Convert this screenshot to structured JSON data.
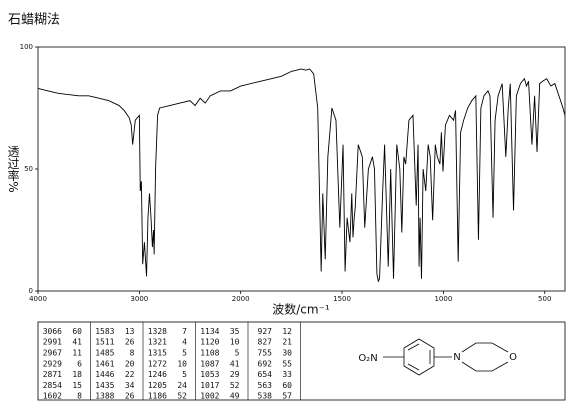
{
  "chart_data": {
    "type": "line",
    "title": "石蜡糊法",
    "ylabel": "透过率%",
    "xlabel": "波数/cm⁻¹",
    "xlim": [
      4000,
      400
    ],
    "x_scale_break": 2000,
    "ylim": [
      0,
      100
    ],
    "xticks": [
      4000,
      3000,
      2000,
      1500,
      1000,
      500
    ],
    "yticks": [
      0,
      50,
      100
    ],
    "grid": false,
    "x": [
      4000,
      3900,
      3800,
      3700,
      3600,
      3500,
      3400,
      3300,
      3200,
      3150,
      3100,
      3080,
      3066,
      3040,
      3000,
      2991,
      2980,
      2967,
      2950,
      2929,
      2915,
      2900,
      2885,
      2871,
      2860,
      2854,
      2840,
      2820,
      2800,
      2700,
      2600,
      2500,
      2450,
      2400,
      2350,
      2300,
      2200,
      2100,
      2000,
      1900,
      1800,
      1750,
      1700,
      1680,
      1660,
      1640,
      1620,
      1603,
      1595,
      1583,
      1570,
      1550,
      1530,
      1511,
      1495,
      1485,
      1475,
      1461,
      1452,
      1446,
      1440,
      1435,
      1420,
      1400,
      1388,
      1370,
      1350,
      1340,
      1328,
      1321,
      1315,
      1300,
      1290,
      1272,
      1260,
      1246,
      1230,
      1215,
      1205,
      1195,
      1186,
      1170,
      1150,
      1134,
      1125,
      1120,
      1115,
      1108,
      1100,
      1087,
      1075,
      1065,
      1053,
      1040,
      1030,
      1017,
      1010,
      1002,
      990,
      970,
      950,
      940,
      927,
      915,
      900,
      880,
      860,
      840,
      827,
      815,
      800,
      780,
      770,
      755,
      745,
      730,
      710,
      692,
      680,
      670,
      654,
      640,
      620,
      600,
      590,
      580,
      563,
      550,
      538,
      525,
      510,
      490,
      470,
      450,
      430,
      410,
      400
    ],
    "series": [
      {
        "color": "#000000",
        "values": [
          83,
          82,
          81,
          80.5,
          80,
          80,
          79,
          78,
          76,
          74,
          71,
          68,
          60,
          70,
          72,
          41,
          45,
          11,
          20,
          6,
          30,
          40,
          30,
          18,
          25,
          15,
          50,
          72,
          75,
          76,
          77,
          78,
          76,
          79,
          77,
          80,
          82,
          82,
          84,
          86,
          88,
          90,
          91,
          90.5,
          91,
          89,
          75,
          8,
          40,
          13,
          55,
          75,
          70,
          26,
          60,
          8,
          30,
          20,
          40,
          22,
          30,
          34,
          60,
          55,
          26,
          50,
          55,
          50,
          7,
          4,
          5,
          40,
          60,
          10,
          50,
          5,
          60,
          50,
          24,
          55,
          52,
          70,
          72,
          35,
          60,
          10,
          30,
          5,
          50,
          41,
          60,
          55,
          29,
          60,
          55,
          52,
          65,
          49,
          68,
          72,
          70,
          74,
          12,
          65,
          70,
          75,
          78,
          80,
          21,
          75,
          80,
          82,
          80,
          30,
          70,
          80,
          85,
          55,
          75,
          85,
          33,
          80,
          85,
          87,
          84,
          86,
          60,
          80,
          57,
          85,
          86,
          87,
          84,
          85,
          80,
          75,
          72
        ]
      }
    ]
  },
  "peak_table": {
    "columns": [
      [
        [
          3066,
          60
        ],
        [
          2991,
          41
        ],
        [
          2967,
          11
        ],
        [
          2929,
          6
        ],
        [
          2871,
          18
        ],
        [
          2854,
          15
        ],
        [
          1602,
          8
        ]
      ],
      [
        [
          1583,
          13
        ],
        [
          1511,
          26
        ],
        [
          1485,
          8
        ],
        [
          1461,
          20
        ],
        [
          1446,
          22
        ],
        [
          1435,
          34
        ],
        [
          1388,
          26
        ]
      ],
      [
        [
          1328,
          7
        ],
        [
          1321,
          4
        ],
        [
          1315,
          5
        ],
        [
          1272,
          10
        ],
        [
          1246,
          5
        ],
        [
          1205,
          24
        ],
        [
          1186,
          52
        ]
      ],
      [
        [
          1134,
          35
        ],
        [
          1120,
          10
        ],
        [
          1108,
          5
        ],
        [
          1087,
          41
        ],
        [
          1053,
          29
        ],
        [
          1017,
          52
        ],
        [
          1002,
          49
        ]
      ],
      [
        [
          927,
          12
        ],
        [
          827,
          21
        ],
        [
          755,
          30
        ],
        [
          692,
          55
        ],
        [
          654,
          33
        ],
        [
          563,
          60
        ],
        [
          538,
          57
        ]
      ]
    ]
  },
  "structure": {
    "labels": [
      "O₂N",
      "N",
      "O"
    ]
  }
}
